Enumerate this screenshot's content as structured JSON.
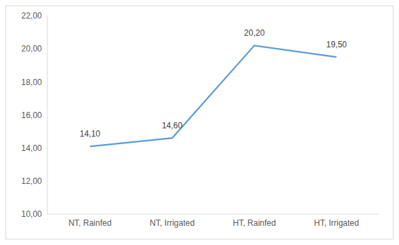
{
  "chart_data": {
    "type": "line",
    "categories": [
      "NT, Rainfed",
      "NT, Irrigated",
      "HT, Rainfed",
      "HT, Irrigated"
    ],
    "values": [
      14.1,
      14.6,
      20.2,
      19.5
    ],
    "value_labels": [
      "14,10",
      "14,60",
      "20,20",
      "19,50"
    ],
    "color": "#5b9bd5",
    "ylim": [
      10,
      22
    ],
    "yticks": [
      {
        "value": 10,
        "label": "10,00"
      },
      {
        "value": 12,
        "label": "12,00"
      },
      {
        "value": 14,
        "label": "14,00"
      },
      {
        "value": 16,
        "label": "16,00"
      },
      {
        "value": 18,
        "label": "18,00"
      },
      {
        "value": 20,
        "label": "20,00"
      },
      {
        "value": 22,
        "label": "22,00"
      }
    ],
    "grid": false,
    "data_labels": true
  }
}
